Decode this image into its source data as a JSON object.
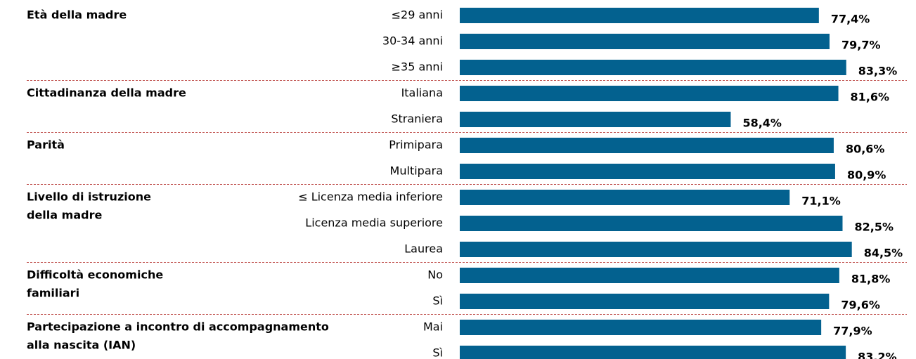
{
  "chart_data": {
    "type": "bar",
    "color": "#03618f",
    "xlim": [
      0,
      100
    ],
    "groups": [
      {
        "label": [
          "Età della madre"
        ],
        "categories": [
          "≤29 anni",
          "30-34 anni",
          "≥35 anni"
        ],
        "values": [
          77.4,
          79.7,
          83.3
        ],
        "value_labels": [
          "77,4%",
          "79,7%",
          "83,3%"
        ]
      },
      {
        "label": [
          "Cittadinanza della madre"
        ],
        "categories": [
          "Italiana",
          "Straniera"
        ],
        "values": [
          81.6,
          58.4
        ],
        "value_labels": [
          "81,6%",
          "58,4%"
        ]
      },
      {
        "label": [
          "Parità"
        ],
        "categories": [
          "Primipara",
          "Multipara"
        ],
        "values": [
          80.6,
          80.9
        ],
        "value_labels": [
          "80,6%",
          "80,9%"
        ]
      },
      {
        "label": [
          "Livello di istruzione",
          "della madre"
        ],
        "categories": [
          "≤ Licenza media inferiore",
          "Licenza media superiore",
          "Laurea"
        ],
        "values": [
          71.1,
          82.5,
          84.5
        ],
        "value_labels": [
          "71,1%",
          "82,5%",
          "84,5%"
        ]
      },
      {
        "label": [
          "Difficoltà economiche",
          "familiari"
        ],
        "categories": [
          "No",
          "Sì"
        ],
        "values": [
          81.8,
          79.6
        ],
        "value_labels": [
          "81,8%",
          "79,6%"
        ]
      },
      {
        "label": [
          "Partecipazione a incontro di accompagnamento",
          "alla nascita (IAN)"
        ],
        "categories": [
          "Mai",
          "Sì"
        ],
        "values": [
          77.9,
          83.2
        ],
        "value_labels": [
          "77,9%",
          "83,2%"
        ]
      }
    ]
  }
}
